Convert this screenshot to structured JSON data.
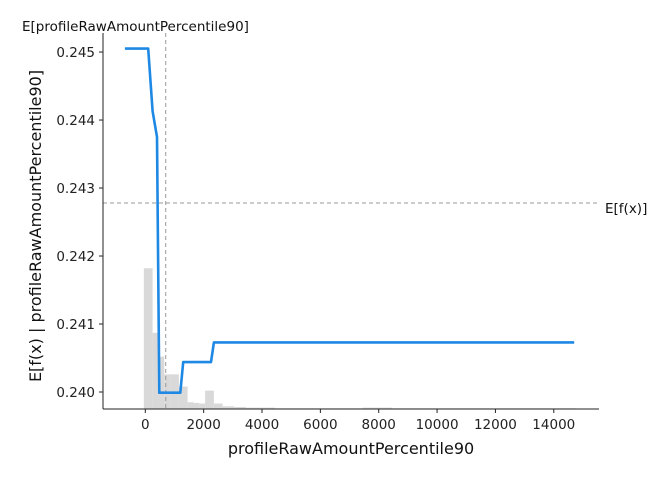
{
  "chart_data": {
    "type": "line",
    "xlabel": "profileRawAmountPercentile90",
    "ylabel": "E[f(x) | profileRawAmountPercentile90]",
    "top_annotation": "E[profileRawAmountPercentile90]",
    "right_annotation": "E[f(x)]",
    "xlim": [
      -1450,
      15550
    ],
    "ylim": [
      0.23975,
      0.24528
    ],
    "xticks": [
      0,
      2000,
      4000,
      6000,
      8000,
      10000,
      12000,
      14000
    ],
    "yticks": [
      0.24,
      0.241,
      0.242,
      0.243,
      0.244,
      0.245
    ],
    "ytick_labels": [
      "0.240",
      "0.241",
      "0.242",
      "0.243",
      "0.244",
      "0.245"
    ],
    "expected_x": 700,
    "expected_fx": 0.24278,
    "series": [
      {
        "color": "#1E88E5",
        "x": [
          -700,
          100,
          250,
          400,
          480,
          700,
          1200,
          1300,
          2250,
          2350,
          14700
        ],
        "y": [
          0.24505,
          0.24505,
          0.24413,
          0.24375,
          0.23999,
          0.23999,
          0.23999,
          0.24044,
          0.24044,
          0.24073,
          0.24073
        ]
      }
    ],
    "histogram": {
      "color": "#d9d9d9",
      "bin_edges": [
        -50,
        250,
        450,
        650,
        850,
        1150,
        1450,
        1650,
        1850,
        2050,
        2350,
        2650,
        3050,
        3450,
        3950,
        4450,
        5450,
        6450,
        7450,
        8450,
        9450,
        11450,
        14750
      ],
      "heights": [
        0.24182,
        0.24087,
        0.24052,
        0.24026,
        0.24026,
        0.24008,
        0.23985,
        0.23984,
        0.23983,
        0.24002,
        0.23983,
        0.23979,
        0.23978,
        0.23977,
        0.23977,
        0.23976,
        0.23976,
        0.23976,
        0.23977,
        0.23976,
        0.23976,
        0.23976
      ]
    }
  }
}
